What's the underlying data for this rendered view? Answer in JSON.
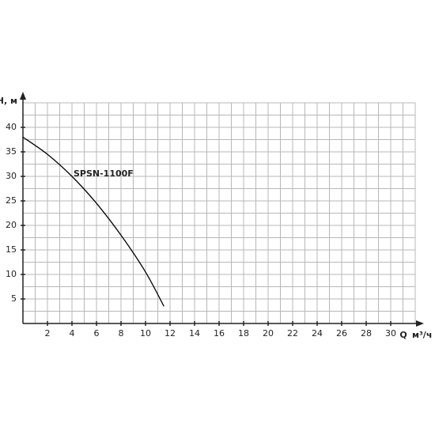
{
  "chart_data": {
    "type": "line",
    "y_label": "H, м",
    "x_label": "Q",
    "x_unit": "м³/ч",
    "x": [
      0,
      2,
      4,
      6,
      8,
      10,
      11.5
    ],
    "series": [
      {
        "name": "SPSN-1100F",
        "color": "#000000",
        "values": [
          38,
          34.5,
          30,
          24.5,
          18,
          10.5,
          3.5
        ]
      }
    ],
    "xlim": [
      0,
      32
    ],
    "ylim": [
      0,
      45
    ],
    "xticks": [
      2,
      4,
      6,
      8,
      10,
      12,
      14,
      16,
      18,
      20,
      22,
      24,
      26,
      28,
      30
    ],
    "yticks": [
      5,
      10,
      15,
      20,
      25,
      30,
      35,
      40
    ],
    "grid": true
  }
}
